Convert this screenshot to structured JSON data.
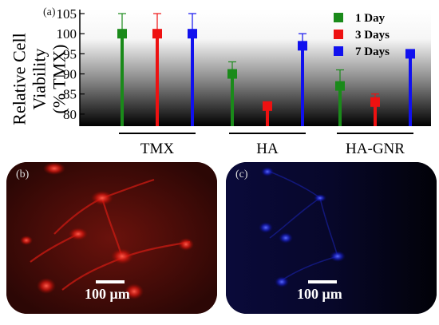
{
  "panel_a_label": "(a)",
  "panel_b_label": "(b)",
  "panel_c_label": "(c)",
  "chart_data": {
    "type": "bar",
    "title": "",
    "ylabel_lines": [
      "Relative Cell",
      "Viability",
      "(% TMX)"
    ],
    "ylim": [
      77,
      106
    ],
    "yticks": [
      80,
      85,
      90,
      95,
      100,
      105
    ],
    "grid": false,
    "legend_position": "top-right",
    "categories": [
      "TMX",
      "HA",
      "HA-GNR"
    ],
    "series": [
      {
        "name": "1 Day",
        "color": "#1a8a1a",
        "values": [
          100,
          90,
          87
        ],
        "errors": [
          5,
          3,
          4
        ]
      },
      {
        "name": "3 Days",
        "color": "#ee1111",
        "values": [
          100,
          82,
          83
        ],
        "errors": [
          5,
          0,
          2
        ]
      },
      {
        "name": "7 Days",
        "color": "#1111ee",
        "values": [
          100,
          97,
          95
        ],
        "errors": [
          5,
          3,
          0
        ]
      }
    ]
  },
  "micrograph_b": {
    "color": "red",
    "scale_label": "100 μm"
  },
  "micrograph_c": {
    "color": "blue",
    "scale_label": "100 μm"
  }
}
